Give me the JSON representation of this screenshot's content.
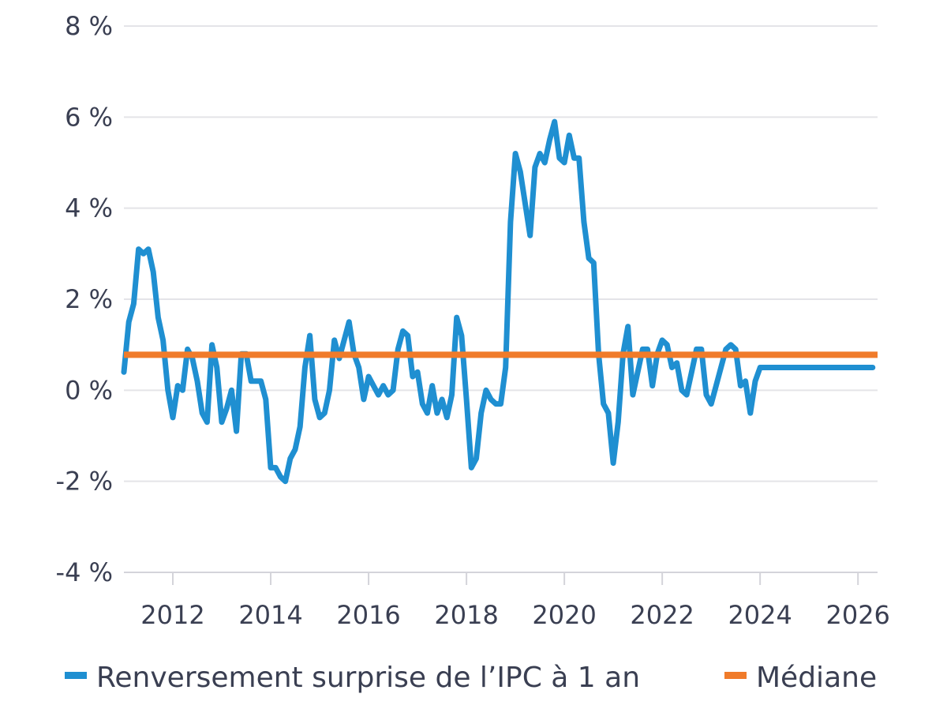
{
  "chart_data": {
    "type": "line",
    "title": "",
    "xlabel": "",
    "ylabel": "",
    "xlim": [
      2011.0,
      2026.4
    ],
    "ylim": [
      -4,
      8
    ],
    "y_ticks": [
      -4,
      -2,
      0,
      2,
      4,
      6,
      8
    ],
    "y_tick_labels": [
      "-4 %",
      "-2 %",
      "0 %",
      "2 %",
      "4 %",
      "6 %",
      "8 %"
    ],
    "x_ticks": [
      2012,
      2014,
      2016,
      2018,
      2020,
      2022,
      2024,
      2026
    ],
    "x_tick_labels": [
      "2012",
      "2014",
      "2016",
      "2018",
      "2020",
      "2022",
      "2024",
      "2026"
    ],
    "grid": "horizontal",
    "legend_position": "bottom",
    "series": [
      {
        "name": "Renversement surprise de l’IPC à 1 an",
        "color": "#1f8fd1",
        "x": [
          2011.0,
          2011.1,
          2011.2,
          2011.3,
          2011.4,
          2011.5,
          2011.6,
          2011.7,
          2011.8,
          2011.9,
          2012.0,
          2012.1,
          2012.2,
          2012.3,
          2012.4,
          2012.5,
          2012.6,
          2012.7,
          2012.8,
          2012.9,
          2013.0,
          2013.1,
          2013.2,
          2013.3,
          2013.4,
          2013.5,
          2013.6,
          2013.7,
          2013.8,
          2013.9,
          2014.0,
          2014.1,
          2014.2,
          2014.3,
          2014.4,
          2014.5,
          2014.6,
          2014.7,
          2014.8,
          2014.9,
          2015.0,
          2015.1,
          2015.2,
          2015.3,
          2015.4,
          2015.5,
          2015.6,
          2015.7,
          2015.8,
          2015.9,
          2016.0,
          2016.1,
          2016.2,
          2016.3,
          2016.4,
          2016.5,
          2016.6,
          2016.7,
          2016.8,
          2016.9,
          2017.0,
          2017.1,
          2017.2,
          2017.3,
          2017.4,
          2017.5,
          2017.6,
          2017.7,
          2017.8,
          2017.9,
          2018.0,
          2018.1,
          2018.2,
          2018.3,
          2018.4,
          2018.5,
          2018.6,
          2018.7,
          2018.8,
          2018.9,
          2019.0,
          2019.1,
          2019.2,
          2019.3,
          2019.4,
          2019.5,
          2019.6,
          2019.7,
          2019.8,
          2019.9,
          2020.0,
          2020.1,
          2020.2,
          2020.3,
          2020.4,
          2020.5,
          2020.6,
          2020.7,
          2020.8,
          2020.9,
          2021.0,
          2021.1,
          2021.2,
          2021.3,
          2021.4,
          2021.5,
          2021.6,
          2021.7,
          2021.8,
          2021.9,
          2022.0,
          2022.1,
          2022.2,
          2022.3,
          2022.4,
          2022.5,
          2022.6,
          2022.7,
          2022.8,
          2022.9,
          2023.0,
          2023.1,
          2023.2,
          2023.3,
          2023.4,
          2023.5,
          2023.6,
          2023.7,
          2023.8,
          2023.9,
          2024.0,
          2024.1,
          2024.2,
          2024.3,
          2024.4,
          2024.5,
          2024.6,
          2024.7,
          2024.8,
          2024.9,
          2025.0,
          2025.1,
          2025.2,
          2025.3,
          2025.4,
          2025.5,
          2025.6,
          2025.7,
          2025.8,
          2025.9,
          2026.0,
          2026.1,
          2026.2,
          2026.3
        ],
        "values": [
          0.4,
          1.5,
          1.9,
          3.1,
          3.0,
          3.1,
          2.6,
          1.6,
          1.1,
          0.0,
          -0.6,
          0.1,
          0.0,
          0.9,
          0.7,
          0.2,
          -0.5,
          -0.7,
          1.0,
          0.5,
          -0.7,
          -0.4,
          0.0,
          -0.9,
          0.8,
          0.8,
          0.2,
          0.2,
          0.2,
          -0.2,
          -1.7,
          -1.7,
          -1.9,
          -2.0,
          -1.5,
          -1.3,
          -0.8,
          0.5,
          1.2,
          -0.2,
          -0.6,
          -0.5,
          0.0,
          1.1,
          0.7,
          1.1,
          1.5,
          0.8,
          0.5,
          -0.2,
          0.3,
          0.1,
          -0.1,
          0.1,
          -0.1,
          0.0,
          0.9,
          1.3,
          1.2,
          0.3,
          0.4,
          -0.3,
          -0.5,
          0.1,
          -0.5,
          -0.2,
          -0.6,
          -0.1,
          1.6,
          1.2,
          -0.2,
          -1.7,
          -1.5,
          -0.5,
          0.0,
          -0.2,
          -0.3,
          -0.3,
          0.5,
          3.7,
          5.2,
          4.8,
          4.1,
          3.4,
          4.9,
          5.2,
          5.0,
          5.5,
          5.9,
          5.1,
          5.0,
          5.6,
          5.1,
          5.1,
          3.7,
          2.9,
          2.8,
          0.8,
          -0.3,
          -0.5,
          -1.6,
          -0.7,
          0.8,
          1.4,
          -0.1,
          0.4,
          0.9,
          0.9,
          0.1,
          0.8,
          1.1,
          1.0,
          0.5,
          0.6,
          0.0,
          -0.1,
          0.4,
          0.9,
          0.9,
          -0.1,
          -0.3,
          0.1,
          0.5,
          0.9,
          1.0,
          0.9,
          0.1,
          0.2,
          -0.5,
          0.2,
          0.5,
          0.5,
          0.5,
          0.5,
          0.5,
          0.5,
          0.5,
          0.5,
          0.5,
          0.5,
          0.5,
          0.5,
          0.5,
          0.5,
          0.5,
          0.5,
          0.5,
          0.5,
          0.5,
          0.5,
          0.5,
          0.5,
          0.5,
          0.5
        ]
      },
      {
        "name": "Médiane",
        "color": "#f07b2a",
        "x": [
          2011.0,
          2026.4
        ],
        "values": [
          0.78,
          0.78
        ]
      }
    ]
  }
}
